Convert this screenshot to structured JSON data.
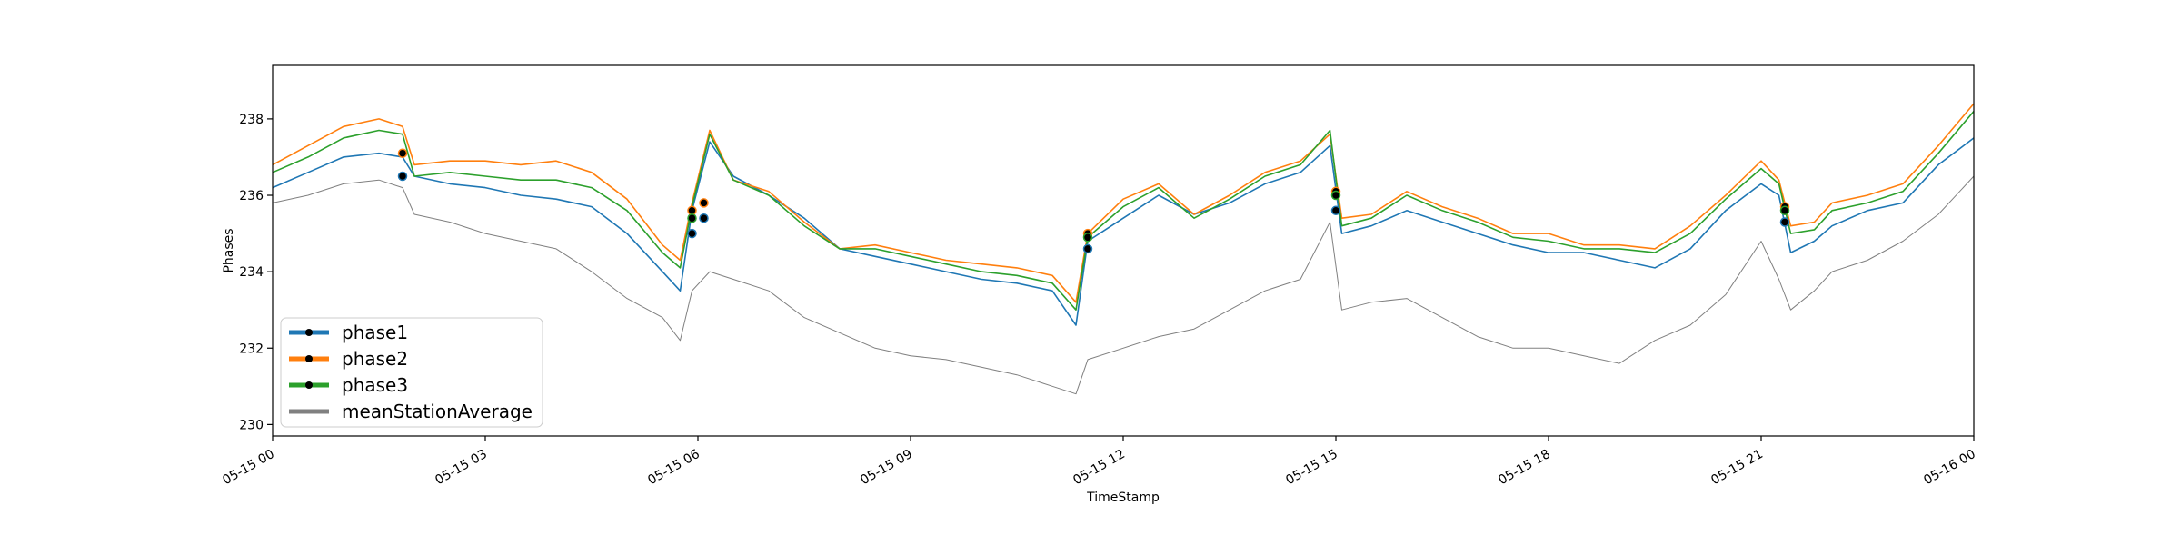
{
  "chart_data": {
    "type": "line",
    "title": "",
    "xlabel": "TimeStamp",
    "ylabel": "Phases",
    "ylim": [
      229.7,
      239.4
    ],
    "xlim": [
      "2019-05-15T00:00",
      "2019-05-16T00:00"
    ],
    "grid": false,
    "legend_position": "lower-left",
    "x_tick_labels": [
      "05-15 00",
      "05-15 03",
      "05-15 06",
      "05-15 09",
      "05-15 12",
      "05-15 15",
      "05-15 18",
      "05-15 21",
      "05-16 00"
    ],
    "y_ticks": [
      230,
      232,
      234,
      236,
      238
    ],
    "x": [
      "2019-05-15T00:00",
      "2019-05-15T00:30",
      "2019-05-15T01:00",
      "2019-05-15T01:30",
      "2019-05-15T01:50",
      "2019-05-15T02:00",
      "2019-05-15T02:30",
      "2019-05-15T03:00",
      "2019-05-15T03:30",
      "2019-05-15T04:00",
      "2019-05-15T04:30",
      "2019-05-15T05:00",
      "2019-05-15T05:30",
      "2019-05-15T05:45",
      "2019-05-15T05:55",
      "2019-05-15T06:10",
      "2019-05-15T06:30",
      "2019-05-15T07:00",
      "2019-05-15T07:30",
      "2019-05-15T08:00",
      "2019-05-15T08:30",
      "2019-05-15T09:00",
      "2019-05-15T09:30",
      "2019-05-15T10:00",
      "2019-05-15T10:30",
      "2019-05-15T11:00",
      "2019-05-15T11:20",
      "2019-05-15T11:30",
      "2019-05-15T12:00",
      "2019-05-15T12:30",
      "2019-05-15T13:00",
      "2019-05-15T13:30",
      "2019-05-15T14:00",
      "2019-05-15T14:30",
      "2019-05-15T14:55",
      "2019-05-15T15:05",
      "2019-05-15T15:30",
      "2019-05-15T16:00",
      "2019-05-15T16:30",
      "2019-05-15T17:00",
      "2019-05-15T17:30",
      "2019-05-15T18:00",
      "2019-05-15T18:30",
      "2019-05-15T19:00",
      "2019-05-15T19:30",
      "2019-05-15T20:00",
      "2019-05-15T20:30",
      "2019-05-15T21:00",
      "2019-05-15T21:15",
      "2019-05-15T21:25",
      "2019-05-15T21:45",
      "2019-05-15T22:00",
      "2019-05-15T22:30",
      "2019-05-15T23:00",
      "2019-05-15T23:30",
      "2019-05-16T00:00"
    ],
    "series": [
      {
        "name": "phase1",
        "color": "#1f77b4",
        "values": [
          236.2,
          236.6,
          237.0,
          237.1,
          237.0,
          236.5,
          236.3,
          236.2,
          236.0,
          235.9,
          235.7,
          235.0,
          234.0,
          233.5,
          235.6,
          237.4,
          236.5,
          236.0,
          235.4,
          234.6,
          234.4,
          234.2,
          234.0,
          233.8,
          233.7,
          233.5,
          232.6,
          234.8,
          235.4,
          236.0,
          235.5,
          235.8,
          236.3,
          236.6,
          237.3,
          235.0,
          235.2,
          235.6,
          235.3,
          235.0,
          234.7,
          234.5,
          234.5,
          234.3,
          234.1,
          234.6,
          235.6,
          236.3,
          236.0,
          234.5,
          234.8,
          235.2,
          235.6,
          235.8,
          236.8,
          237.5
        ]
      },
      {
        "name": "phase2",
        "color": "#ff7f0e",
        "values": [
          236.8,
          237.3,
          237.8,
          238.0,
          237.8,
          236.8,
          236.9,
          236.9,
          236.8,
          236.9,
          236.6,
          235.9,
          234.7,
          234.3,
          235.8,
          237.7,
          236.4,
          236.1,
          235.3,
          234.6,
          234.7,
          234.5,
          234.3,
          234.2,
          234.1,
          233.9,
          233.2,
          235.0,
          235.9,
          236.3,
          235.5,
          236.0,
          236.6,
          236.9,
          237.6,
          235.4,
          235.5,
          236.1,
          235.7,
          235.4,
          235.0,
          235.0,
          234.7,
          234.7,
          234.6,
          235.2,
          236.0,
          236.9,
          236.4,
          235.2,
          235.3,
          235.8,
          236.0,
          236.3,
          237.3,
          238.4
        ]
      },
      {
        "name": "phase3",
        "color": "#2ca02c",
        "values": [
          236.6,
          237.0,
          237.5,
          237.7,
          237.6,
          236.5,
          236.6,
          236.5,
          236.4,
          236.4,
          236.2,
          235.6,
          234.5,
          234.1,
          235.7,
          237.6,
          236.4,
          236.0,
          235.2,
          234.6,
          234.6,
          234.4,
          234.2,
          234.0,
          233.9,
          233.7,
          233.0,
          234.9,
          235.7,
          236.2,
          235.4,
          235.9,
          236.5,
          236.8,
          237.7,
          235.2,
          235.4,
          236.0,
          235.6,
          235.3,
          234.9,
          234.8,
          234.6,
          234.6,
          234.5,
          235.0,
          235.9,
          236.7,
          236.3,
          235.0,
          235.1,
          235.6,
          235.8,
          236.1,
          237.1,
          238.2
        ]
      },
      {
        "name": "meanStationAverage",
        "color": "#808080",
        "values": [
          235.8,
          236.0,
          236.3,
          236.4,
          236.2,
          235.5,
          235.3,
          235.0,
          234.8,
          234.6,
          234.0,
          233.3,
          232.8,
          232.2,
          233.5,
          234.0,
          233.8,
          233.5,
          232.8,
          232.4,
          232.0,
          231.8,
          231.7,
          231.5,
          231.3,
          231.0,
          230.8,
          231.7,
          232.0,
          232.3,
          232.5,
          233.0,
          233.5,
          233.8,
          235.3,
          233.0,
          233.2,
          233.3,
          232.8,
          232.3,
          232.0,
          232.0,
          231.8,
          231.6,
          232.2,
          232.6,
          233.4,
          234.8,
          233.8,
          233.0,
          233.5,
          234.0,
          234.3,
          234.8,
          235.5,
          236.5
        ]
      }
    ],
    "markers": {
      "phase1": [
        {
          "x": "2019-05-15T01:50",
          "y": 236.5
        },
        {
          "x": "2019-05-15T05:55",
          "y": 235.0
        },
        {
          "x": "2019-05-15T06:05",
          "y": 235.4
        },
        {
          "x": "2019-05-15T11:30",
          "y": 234.6
        },
        {
          "x": "2019-05-15T15:00",
          "y": 235.6
        },
        {
          "x": "2019-05-15T21:20",
          "y": 235.3
        }
      ],
      "phase2": [
        {
          "x": "2019-05-15T01:50",
          "y": 237.1
        },
        {
          "x": "2019-05-15T05:55",
          "y": 235.6
        },
        {
          "x": "2019-05-15T06:05",
          "y": 235.8
        },
        {
          "x": "2019-05-15T11:30",
          "y": 235.0
        },
        {
          "x": "2019-05-15T15:00",
          "y": 236.1
        },
        {
          "x": "2019-05-15T21:20",
          "y": 235.7
        }
      ],
      "phase3": [
        {
          "x": "2019-05-15T05:55",
          "y": 235.4
        },
        {
          "x": "2019-05-15T11:30",
          "y": 234.9
        },
        {
          "x": "2019-05-15T15:00",
          "y": 236.0
        },
        {
          "x": "2019-05-15T21:20",
          "y": 235.6
        }
      ]
    }
  }
}
